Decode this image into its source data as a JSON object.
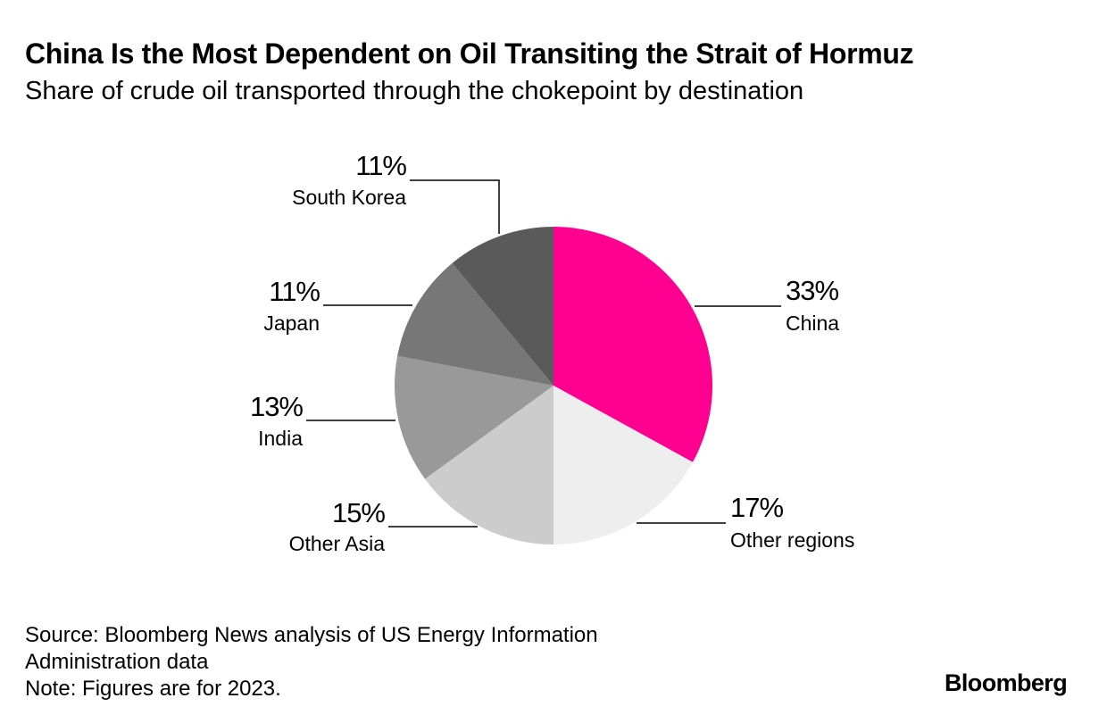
{
  "header": {
    "title": "China Is the Most Dependent on Oil Transiting the Strait of Hormuz",
    "subtitle": "Share of crude oil transported through the chokepoint by destination"
  },
  "footer": {
    "source_line1": "Source: Bloomberg News analysis of US Energy Information",
    "source_line2": "Administration data",
    "note": "Note: Figures are for 2023."
  },
  "brand": {
    "logo_text": "Bloomberg"
  },
  "chart_data": {
    "type": "pie",
    "title": "China Is the Most Dependent on Oil Transiting the Strait of Hormuz",
    "subtitle": "Share of crude oil transported through the chokepoint by destination",
    "units": "percent",
    "start_angle": "12 o'clock",
    "direction": "clockwise",
    "slices": [
      {
        "label": "China",
        "value": 33,
        "value_label": "33%",
        "color": "#ff0090",
        "key": "china"
      },
      {
        "label": "Other regions",
        "value": 17,
        "value_label": "17%",
        "color": "#eeeeee",
        "key": "other-regions"
      },
      {
        "label": "Other Asia",
        "value": 15,
        "value_label": "15%",
        "color": "#cccccc",
        "key": "other-asia"
      },
      {
        "label": "India",
        "value": 13,
        "value_label": "13%",
        "color": "#999999",
        "key": "india"
      },
      {
        "label": "Japan",
        "value": 11,
        "value_label": "11%",
        "color": "#777777",
        "key": "japan"
      },
      {
        "label": "South Korea",
        "value": 11,
        "value_label": "11%",
        "color": "#5a5a5a",
        "key": "south-korea"
      }
    ]
  }
}
